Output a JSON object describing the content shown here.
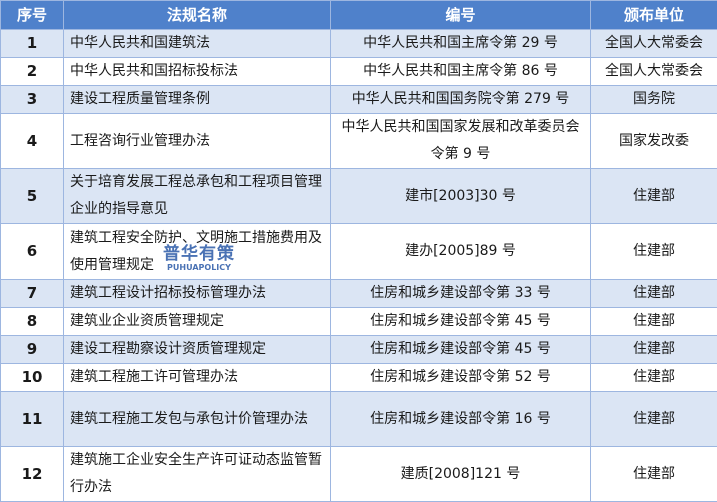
{
  "table": {
    "headers": [
      "序号",
      "法规名称",
      "编号",
      "颁布单位"
    ],
    "rows": [
      {
        "no": "1",
        "name": "中华人民共和国建筑法",
        "code": "中华人民共和国主席令第 29 号",
        "issuer": "全国人大常委会"
      },
      {
        "no": "2",
        "name": "中华人民共和国招标投标法",
        "code": "中华人民共和国主席令第 86 号",
        "issuer": "全国人大常委会"
      },
      {
        "no": "3",
        "name": "建设工程质量管理条例",
        "code": "中华人民共和国国务院令第 279 号",
        "issuer": "国务院"
      },
      {
        "no": "4",
        "name": "工程咨询行业管理办法",
        "code": "中华人民共和国国家发展和改革委员会令第 9 号",
        "issuer": "国家发改委"
      },
      {
        "no": "5",
        "name": "关于培育发展工程总承包和工程项目管理企业的指导意见",
        "code": "建市[2003]30 号",
        "issuer": "住建部"
      },
      {
        "no": "6",
        "name": "建筑工程安全防护、文明施工措施费用及使用管理规定",
        "code": "建办[2005]89 号",
        "issuer": "住建部"
      },
      {
        "no": "7",
        "name": "建筑工程设计招标投标管理办法",
        "code": "住房和城乡建设部令第 33 号",
        "issuer": "住建部"
      },
      {
        "no": "8",
        "name": "建筑业企业资质管理规定",
        "code": "住房和城乡建设部令第 45 号",
        "issuer": "住建部"
      },
      {
        "no": "9",
        "name": "建设工程勘察设计资质管理规定",
        "code": "住房和城乡建设部令第 45 号",
        "issuer": "住建部"
      },
      {
        "no": "10",
        "name": "建筑工程施工许可管理办法",
        "code": "住房和城乡建设部令第 52 号",
        "issuer": "住建部"
      },
      {
        "no": "11",
        "name": "建筑工程施工发包与承包计价管理办法",
        "code": "住房和城乡建设部令第 16 号",
        "issuer": "住建部"
      },
      {
        "no": "12",
        "name": "建筑施工企业安全生产许可证动态监管暂行办法",
        "code": "建质[2008]121 号",
        "issuer": "住建部"
      }
    ]
  },
  "watermark": {
    "text_cn": "普华有策",
    "text_en": "PUHUAPOLICY"
  },
  "colors": {
    "header": "#4f81cb",
    "row_alt": "#dbe5f4",
    "border": "#9db6e0"
  }
}
